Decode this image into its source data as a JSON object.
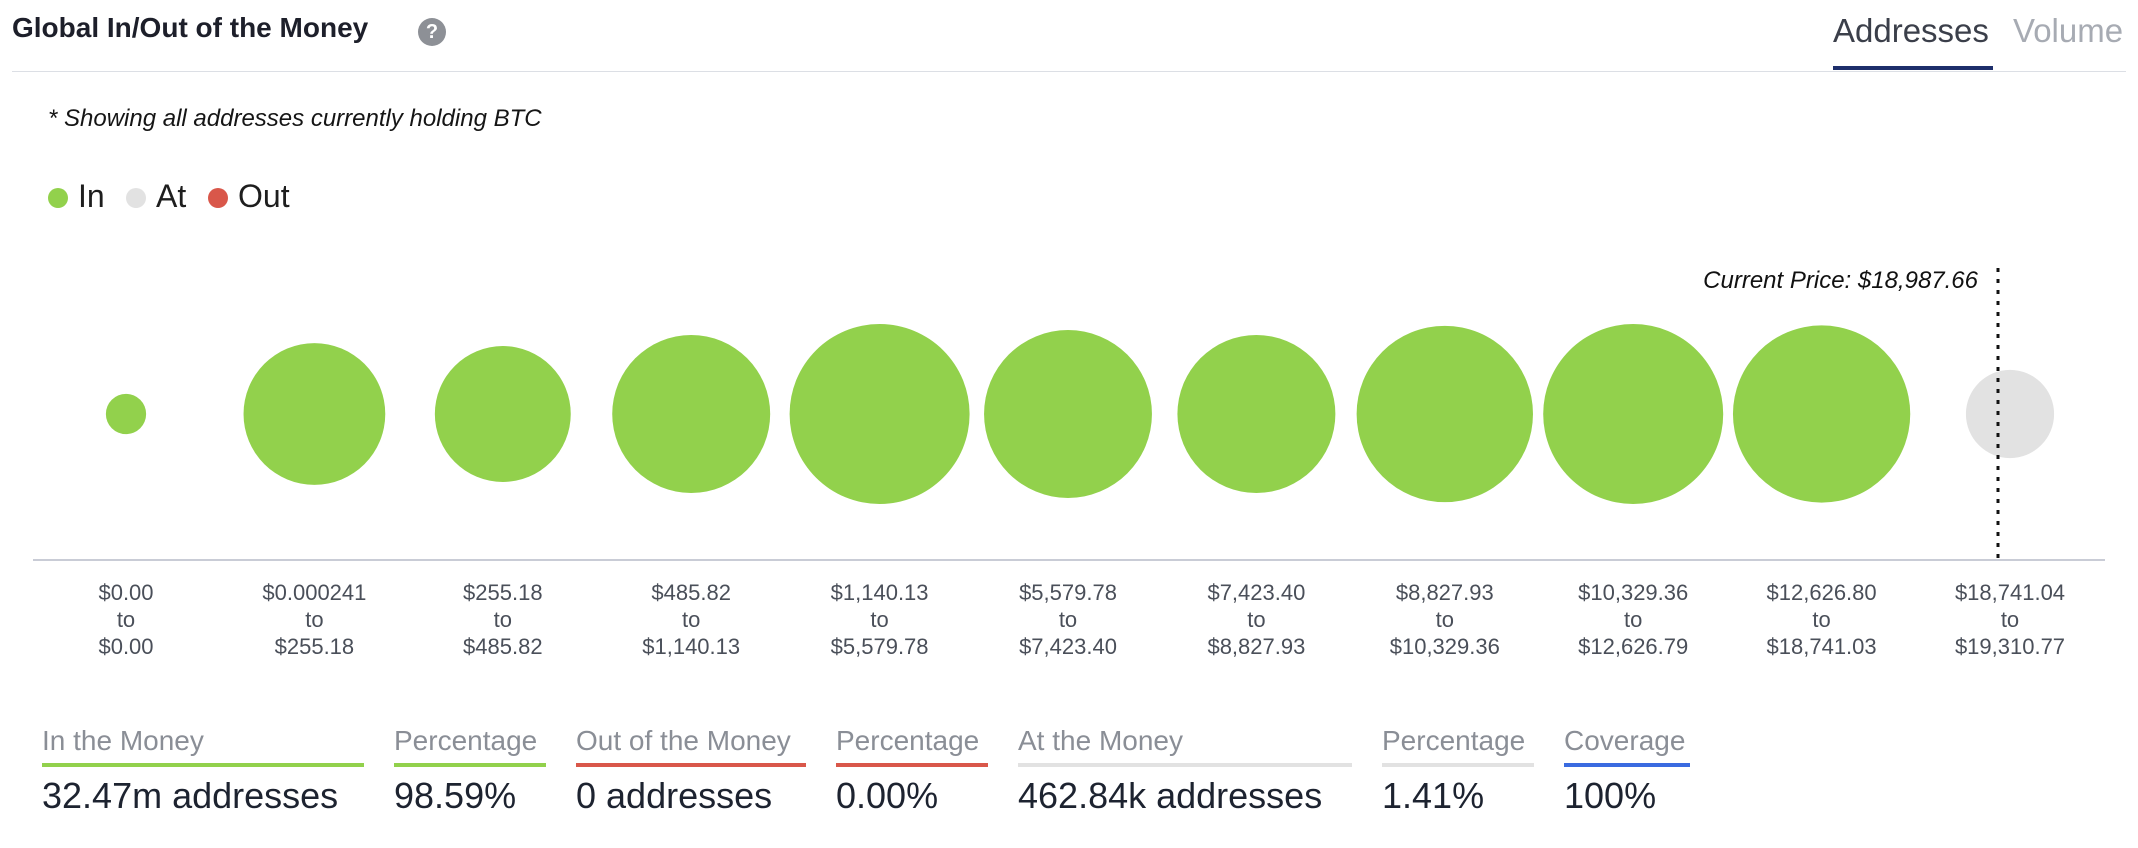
{
  "header": {
    "title": "Global In/Out of the Money",
    "help_icon": "question-mark-icon",
    "tabs": [
      {
        "label": "Addresses",
        "active": true
      },
      {
        "label": "Volume",
        "active": false
      }
    ]
  },
  "subtitle": "* Showing all addresses currently holding BTC",
  "colors": {
    "in": "#92d14c",
    "at": "#e2e2e2",
    "out": "#d9574a",
    "coverage": "#3a6be0",
    "axis": "#c9ccd6",
    "price_line": "#111111"
  },
  "legend": [
    {
      "label": "In",
      "color": "#92d14c"
    },
    {
      "label": "At",
      "color": "#e2e2e2"
    },
    {
      "label": "Out",
      "color": "#d9574a"
    }
  ],
  "chart_data": {
    "type": "bubble",
    "title": "Global In/Out of the Money",
    "current_price_label": "Current Price: $18,987.66",
    "current_price": 18987.66,
    "size_unit": "relative address count (max = 1)",
    "ranges": [
      {
        "from": "$0.00",
        "to": "$0.00",
        "status": "in",
        "size": 0.05
      },
      {
        "from": "$0.000241",
        "to": "$255.18",
        "status": "in",
        "size": 0.62
      },
      {
        "from": "$255.18",
        "to": "$485.82",
        "status": "in",
        "size": 0.57
      },
      {
        "from": "$485.82",
        "to": "$1,140.13",
        "status": "in",
        "size": 0.77
      },
      {
        "from": "$1,140.13",
        "to": "$5,579.78",
        "status": "in",
        "size": 1.0
      },
      {
        "from": "$5,579.78",
        "to": "$7,423.40",
        "status": "in",
        "size": 0.87
      },
      {
        "from": "$7,423.40",
        "to": "$8,827.93",
        "status": "in",
        "size": 0.77
      },
      {
        "from": "$8,827.93",
        "to": "$10,329.36",
        "status": "in",
        "size": 0.96
      },
      {
        "from": "$10,329.36",
        "to": "$12,626.79",
        "status": "in",
        "size": 1.0
      },
      {
        "from": "$12,626.80",
        "to": "$18,741.03",
        "status": "in",
        "size": 0.97
      },
      {
        "from": "$18,741.04",
        "to": "$19,310.77",
        "status": "at",
        "size": 0.24
      }
    ],
    "range_separator": "to"
  },
  "stats": [
    {
      "label": "In the Money",
      "value": "32.47m addresses",
      "color": "#92d14c"
    },
    {
      "label": "Percentage",
      "value": "98.59%",
      "color": "#92d14c"
    },
    {
      "label": "Out of the Money",
      "value": "0 addresses",
      "color": "#d9574a"
    },
    {
      "label": "Percentage",
      "value": "0.00%",
      "color": "#d9574a"
    },
    {
      "label": "At the Money",
      "value": "462.84k addresses",
      "color": "#e2e2e2"
    },
    {
      "label": "Percentage",
      "value": "1.41%",
      "color": "#e2e2e2"
    },
    {
      "label": "Coverage",
      "value": "100%",
      "color": "#3a6be0"
    }
  ]
}
